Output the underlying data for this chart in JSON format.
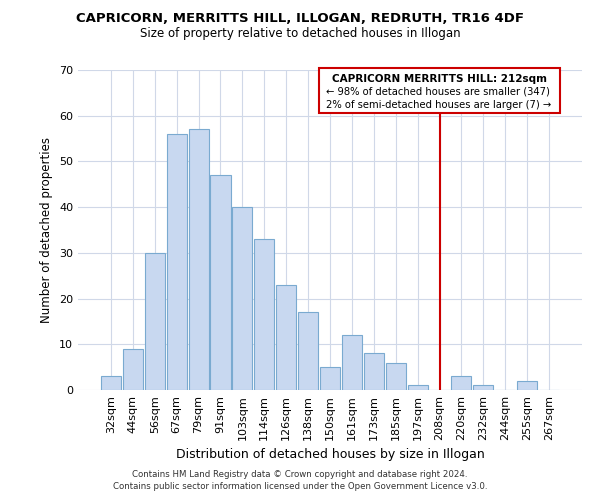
{
  "title": "CAPRICORN, MERRITTS HILL, ILLOGAN, REDRUTH, TR16 4DF",
  "subtitle": "Size of property relative to detached houses in Illogan",
  "xlabel": "Distribution of detached houses by size in Illogan",
  "ylabel": "Number of detached properties",
  "bar_labels": [
    "32sqm",
    "44sqm",
    "56sqm",
    "67sqm",
    "79sqm",
    "91sqm",
    "103sqm",
    "114sqm",
    "126sqm",
    "138sqm",
    "150sqm",
    "161sqm",
    "173sqm",
    "185sqm",
    "197sqm",
    "208sqm",
    "220sqm",
    "232sqm",
    "244sqm",
    "255sqm",
    "267sqm"
  ],
  "bar_values": [
    3,
    9,
    30,
    56,
    57,
    47,
    40,
    33,
    23,
    17,
    5,
    12,
    8,
    6,
    1,
    0,
    3,
    1,
    0,
    2,
    0
  ],
  "bar_color": "#c8d8f0",
  "bar_edgecolor": "#7aaad0",
  "vline_x_index": 15,
  "vline_color": "#cc0000",
  "ylim": [
    0,
    70
  ],
  "yticks": [
    0,
    10,
    20,
    30,
    40,
    50,
    60,
    70
  ],
  "annotation_title": "CAPRICORN MERRITTS HILL: 212sqm",
  "annotation_line1": "← 98% of detached houses are smaller (347)",
  "annotation_line2": "2% of semi-detached houses are larger (7) →",
  "footer1": "Contains HM Land Registry data © Crown copyright and database right 2024.",
  "footer2": "Contains public sector information licensed under the Open Government Licence v3.0.",
  "background_color": "#ffffff",
  "grid_color": "#d0d8e8"
}
